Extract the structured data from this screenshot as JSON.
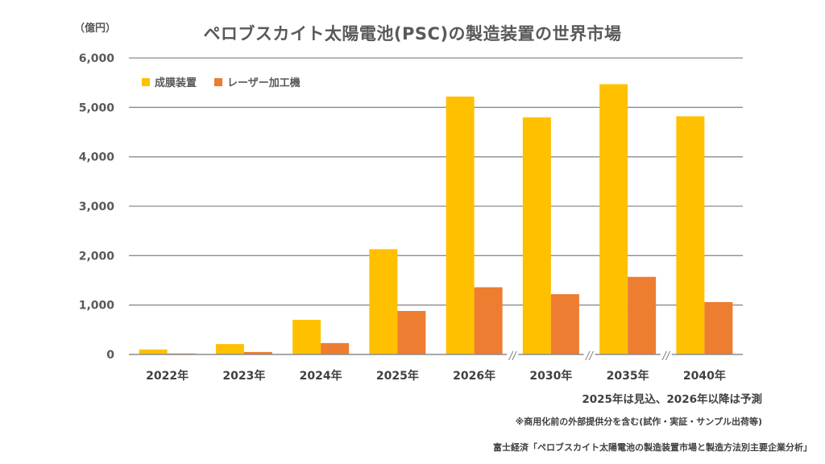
{
  "chart_data": {
    "type": "bar",
    "title": "ペロブスカイト太陽電池(PSC)の製造装置の世界市場",
    "ylabel": "（億円）",
    "xlabel": "",
    "ylim": [
      0,
      6000
    ],
    "yticks": [
      0,
      1000,
      2000,
      3000,
      4000,
      5000,
      6000
    ],
    "ytick_labels": [
      "0",
      "1,000",
      "2,000",
      "3,000",
      "4,000",
      "5,000",
      "6,000"
    ],
    "grid": true,
    "legend_position": "top-left",
    "categories": [
      "2022年",
      "2023年",
      "2024年",
      "2025年",
      "2026年",
      "2030年",
      "2035年",
      "2040年"
    ],
    "axis_breaks_after": [
      "2026年",
      "2030年",
      "2035年"
    ],
    "axis_break_symbol": "//",
    "series": [
      {
        "name": "成膜装置",
        "color": "#FFC000",
        "values": [
          100,
          210,
          700,
          2130,
          5220,
          4800,
          5470,
          4820
        ]
      },
      {
        "name": "レーザー加工機",
        "color": "#ED7D31",
        "values": [
          20,
          50,
          230,
          880,
          1360,
          1220,
          1570,
          1060
        ]
      }
    ],
    "annotations": [
      "2025年は見込、2026年以降は予測",
      "※商用化前の外部提供分を含む(試作・実証・サンプル出荷等)",
      "富士経済「ペロブスカイト太陽電池の製造装置市場と製造方法別主要企業分析」"
    ]
  }
}
